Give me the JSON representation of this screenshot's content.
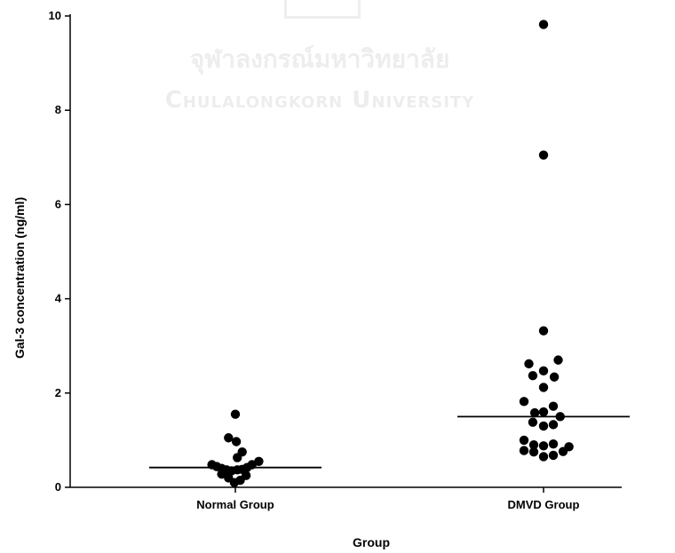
{
  "watermark": {
    "line1": "จุฬาลงกรณ์มหาวิทยาลัย",
    "line2": "Chulalongkorn University"
  },
  "chart_data": {
    "type": "scatter",
    "title": "",
    "xlabel": "Group",
    "ylabel": "Gal-3 concentration (ng/ml)",
    "ylim": [
      0,
      10
    ],
    "yticks": [
      0,
      2,
      4,
      6,
      8,
      10
    ],
    "grid": false,
    "categories": [
      "Normal Group",
      "DMVD Group"
    ],
    "series": [
      {
        "category": "Normal Group",
        "median": 0.42,
        "points": [
          {
            "y": 1.55,
            "j": 0.0
          },
          {
            "y": 1.05,
            "j": -0.35
          },
          {
            "y": 0.97,
            "j": 0.05
          },
          {
            "y": 0.75,
            "j": 0.35
          },
          {
            "y": 0.63,
            "j": 0.1
          },
          {
            "y": 0.55,
            "j": 1.2
          },
          {
            "y": 0.48,
            "j": -1.2
          },
          {
            "y": 0.48,
            "j": 0.85
          },
          {
            "y": 0.44,
            "j": -0.95
          },
          {
            "y": 0.42,
            "j": 0.6
          },
          {
            "y": 0.4,
            "j": -0.7
          },
          {
            "y": 0.38,
            "j": 0.35
          },
          {
            "y": 0.37,
            "j": -0.45
          },
          {
            "y": 0.37,
            "j": 0.1
          },
          {
            "y": 0.35,
            "j": -0.2
          },
          {
            "y": 0.28,
            "j": -0.7
          },
          {
            "y": 0.25,
            "j": 0.55
          },
          {
            "y": 0.2,
            "j": -0.35
          },
          {
            "y": 0.15,
            "j": 0.25
          },
          {
            "y": 0.1,
            "j": -0.05
          }
        ]
      },
      {
        "category": "DMVD Group",
        "median": 1.5,
        "points": [
          {
            "y": 9.82,
            "j": 0.0
          },
          {
            "y": 7.05,
            "j": 0.0
          },
          {
            "y": 3.32,
            "j": 0.0
          },
          {
            "y": 2.7,
            "j": 0.75
          },
          {
            "y": 2.62,
            "j": -0.75
          },
          {
            "y": 2.47,
            "j": 0.0
          },
          {
            "y": 2.37,
            "j": -0.55
          },
          {
            "y": 2.34,
            "j": 0.55
          },
          {
            "y": 2.12,
            "j": 0.0
          },
          {
            "y": 1.82,
            "j": -1.0
          },
          {
            "y": 1.72,
            "j": 0.5
          },
          {
            "y": 1.6,
            "j": 0.0
          },
          {
            "y": 1.58,
            "j": -0.45
          },
          {
            "y": 1.5,
            "j": 0.85
          },
          {
            "y": 1.38,
            "j": -0.55
          },
          {
            "y": 1.33,
            "j": 0.5
          },
          {
            "y": 1.3,
            "j": 0.0
          },
          {
            "y": 1.0,
            "j": -1.0
          },
          {
            "y": 0.92,
            "j": 0.5
          },
          {
            "y": 0.9,
            "j": -0.5
          },
          {
            "y": 0.88,
            "j": 0.0
          },
          {
            "y": 0.86,
            "j": 1.3
          },
          {
            "y": 0.78,
            "j": -1.0
          },
          {
            "y": 0.76,
            "j": 1.0
          },
          {
            "y": 0.75,
            "j": -0.5
          },
          {
            "y": 0.68,
            "j": 0.5
          },
          {
            "y": 0.65,
            "j": 0.0
          }
        ]
      }
    ]
  }
}
